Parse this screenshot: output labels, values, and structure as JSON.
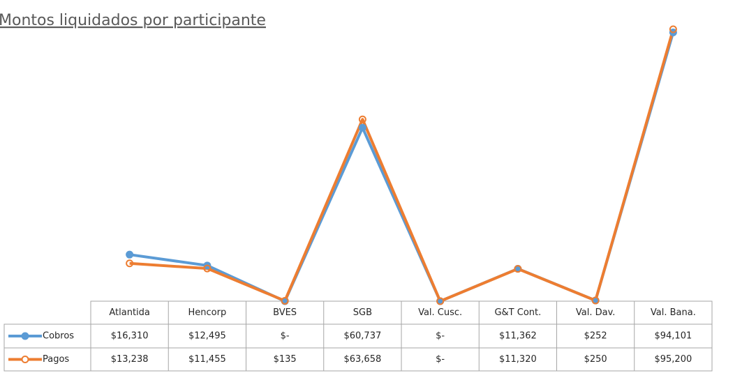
{
  "chart_data": {
    "type": "line",
    "title": "Montos liquidados por participante",
    "categories": [
      "Atlantida",
      "Hencorp",
      "BVES",
      "SGB",
      "Val. Cusc.",
      "G&T Cont.",
      "Val. Dav.",
      "Val. Bana."
    ],
    "series": [
      {
        "name": "Cobros",
        "color": "#5b9bd5",
        "values": [
          16310,
          12495,
          0,
          60737,
          0,
          11362,
          252,
          94101
        ],
        "value_labels": [
          "$16,310",
          "$12,495",
          "$-",
          "$60,737",
          "$-",
          "$11,362",
          "$252",
          "$94,101"
        ]
      },
      {
        "name": "Pagos",
        "color": "#ed7d31",
        "values": [
          13238,
          11455,
          135,
          63658,
          0,
          11320,
          250,
          95200
        ],
        "value_labels": [
          "$13,238",
          "$11,455",
          "$135",
          "$63,658",
          "$-",
          "$11,320",
          "$250",
          "$95,200"
        ]
      }
    ]
  }
}
